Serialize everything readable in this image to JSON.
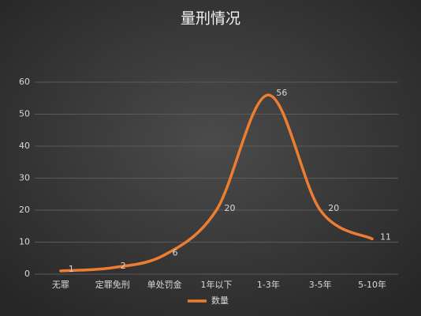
{
  "chart_data": {
    "type": "line",
    "title": "量刑情况",
    "categories": [
      "无罪",
      "定罪免刑",
      "单处罚金",
      "1年以下",
      "1-3年",
      "3-5年",
      "5-10年"
    ],
    "series": [
      {
        "name": "数量",
        "color": "#ed7d31",
        "values": [
          1,
          2,
          6,
          20,
          56,
          20,
          11
        ]
      }
    ],
    "ylim": [
      0,
      60
    ],
    "yticks": [
      0,
      10,
      20,
      30,
      40,
      50,
      60
    ],
    "grid": true,
    "smooth": true,
    "legend": "bottom"
  }
}
